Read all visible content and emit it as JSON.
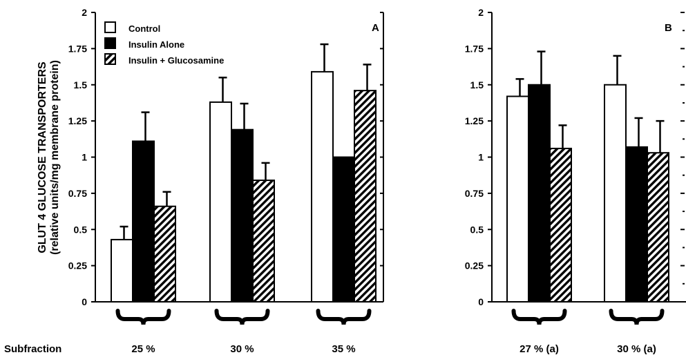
{
  "chart_data": [
    {
      "type": "bar",
      "panel_label": "A",
      "ylabel_line1": "GLUT 4 GLUCOSE TRANSPORTERS",
      "ylabel_line2": "(relative  units/mg  membrane  protein)",
      "ylim": [
        0,
        2
      ],
      "yticks": [
        "0",
        "0.25",
        "0.5",
        "0.75",
        "1",
        "1.25",
        "1.5",
        "1.75",
        "2"
      ],
      "row_label": "Subfraction",
      "categories": [
        "25 %",
        "30 %",
        "35 %"
      ],
      "series": [
        {
          "name": "Control",
          "pattern": "white",
          "values": [
            0.43,
            1.38,
            1.59
          ],
          "errors": [
            0.09,
            0.17,
            0.19
          ]
        },
        {
          "name": "Insulin  Alone",
          "pattern": "black",
          "values": [
            1.11,
            1.19,
            1.0
          ],
          "errors": [
            0.2,
            0.18,
            0
          ]
        },
        {
          "name": "Insulin  +  Glucosamine",
          "pattern": "hatch",
          "values": [
            0.66,
            0.84,
            1.46
          ],
          "errors": [
            0.1,
            0.12,
            0.18
          ]
        }
      ],
      "legend_position": "top-left"
    },
    {
      "type": "bar",
      "panel_label": "B",
      "ylim": [
        0,
        2
      ],
      "yticks": [
        "0",
        "0.25",
        "0.5",
        "0.75",
        "1",
        "1.25",
        "1.5",
        "1.75",
        "2"
      ],
      "categories": [
        "27 % (a)",
        "30 % (a)"
      ],
      "series": [
        {
          "pattern": "white",
          "values": [
            1.42,
            1.5
          ],
          "errors": [
            0.12,
            0.2
          ]
        },
        {
          "pattern": "black",
          "values": [
            1.5,
            1.07
          ],
          "errors": [
            0.23,
            0.2
          ]
        },
        {
          "pattern": "hatch",
          "values": [
            1.06,
            1.03
          ],
          "errors": [
            0.16,
            0.22
          ]
        }
      ]
    }
  ]
}
